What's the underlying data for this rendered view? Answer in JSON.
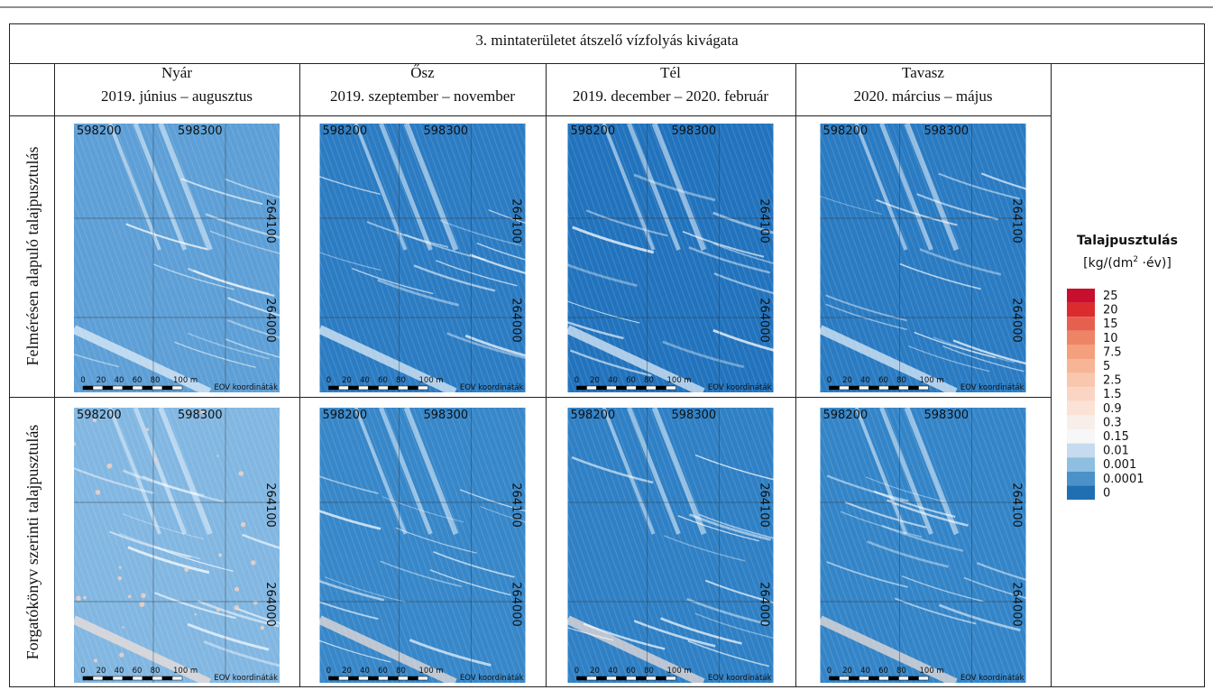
{
  "title": "3. mintaterületet átszelő vízfolyás kivágata",
  "columns": [
    {
      "season": "Nyár",
      "period": "2019. június – augusztus"
    },
    {
      "season": "Ősz",
      "period": "2019. szeptember – november"
    },
    {
      "season": "Tél",
      "period": "2019. december – 2020. február"
    },
    {
      "season": "Tavasz",
      "period": "2020. március – május"
    }
  ],
  "rows": [
    "Felmérésen alapuló talajpusztulás",
    "Forgatókönyv szerinti talajpusztulás"
  ],
  "map_labels": {
    "x_coords": [
      "598200",
      "598300"
    ],
    "y_coords": [
      "264100",
      "264000"
    ],
    "scale": [
      "0",
      "20",
      "40",
      "60",
      "80",
      "100 m"
    ],
    "crs": "EOV koordináták"
  },
  "legend": {
    "title": "Talajpusztulás",
    "unit_prefix": "[kg/(dm",
    "unit_sup": "2",
    "unit_suffix": " ·év)]",
    "items": [
      {
        "label": "25",
        "color": "#c8102e"
      },
      {
        "label": "20",
        "color": "#dc2b2f"
      },
      {
        "label": "15",
        "color": "#e6604f"
      },
      {
        "label": "10",
        "color": "#ee8466"
      },
      {
        "label": "7.5",
        "color": "#f4a07e"
      },
      {
        "label": "5",
        "color": "#f7b595"
      },
      {
        "label": "2.5",
        "color": "#f9c7ad"
      },
      {
        "label": "1.5",
        "color": "#fbd5c3"
      },
      {
        "label": "0.9",
        "color": "#fbe2d7"
      },
      {
        "label": "0.3",
        "color": "#f8eeea"
      },
      {
        "label": "0.15",
        "color": "#f7f7f7"
      },
      {
        "label": "0.01",
        "color": "#c6dbef"
      },
      {
        "label": "0.001",
        "color": "#8fbfe0"
      },
      {
        "label": "0.0001",
        "color": "#4a92c8"
      },
      {
        "label": "0",
        "color": "#1f6fb2"
      }
    ]
  }
}
